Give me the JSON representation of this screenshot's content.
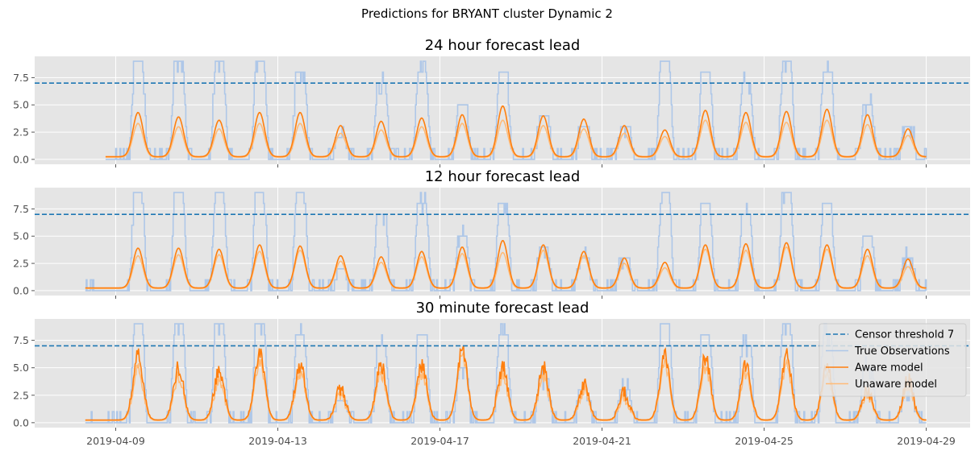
{
  "figure": {
    "suptitle": "Predictions for BRYANT cluster Dynamic 2"
  },
  "colors": {
    "background": "#e5e5e5",
    "grid": "#ffffff",
    "threshold": "#1f77b4",
    "true_obs": "#aec7e8",
    "aware": "#ff7f0e",
    "unaware": "#ffbb78"
  },
  "chart_data": [
    {
      "type": "line",
      "title": "24 hour forecast lead",
      "xlabel": "",
      "ylabel": "",
      "x_ticks": [
        "2019-04-09",
        "2019-04-13",
        "2019-04-17",
        "2019-04-21",
        "2019-04-25",
        "2019-04-29"
      ],
      "x_ticks_labeled": false,
      "y_ticks": [
        0.0,
        2.5,
        5.0,
        7.5
      ],
      "y_tick_labels": [
        "0.0",
        "2.5",
        "5.0",
        "7.5"
      ],
      "xlim": [
        "2019-04-07T00:00",
        "2019-04-30T02:00"
      ],
      "ylim": [
        -0.45,
        9.45
      ],
      "grid": true,
      "threshold": 7,
      "series_start": "2019-04-08T18:00",
      "series_end": "2019-04-29T00:00",
      "peak_days": [
        "2019-04-09",
        "2019-04-10",
        "2019-04-11",
        "2019-04-12",
        "2019-04-13",
        "2019-04-14",
        "2019-04-15",
        "2019-04-16",
        "2019-04-17",
        "2019-04-18",
        "2019-04-19",
        "2019-04-20",
        "2019-04-21",
        "2019-04-22",
        "2019-04-23",
        "2019-04-24",
        "2019-04-25",
        "2019-04-26",
        "2019-04-27",
        "2019-04-28"
      ],
      "observed_daily_peak": [
        9,
        9,
        9,
        9,
        8,
        2,
        7,
        8,
        5,
        8,
        4,
        3,
        3,
        9,
        8,
        7,
        9,
        8,
        5,
        3
      ],
      "aware_daily_peak": [
        4.3,
        3.9,
        3.6,
        4.3,
        4.3,
        3.1,
        3.5,
        3.8,
        4.1,
        4.9,
        4.0,
        3.7,
        3.1,
        2.7,
        4.5,
        4.3,
        4.4,
        4.6,
        4.1,
        2.8
      ],
      "unaware_daily_peak": [
        3.3,
        3.0,
        2.8,
        3.3,
        3.3,
        2.4,
        2.7,
        3.0,
        3.3,
        3.6,
        3.1,
        2.8,
        2.4,
        2.1,
        3.6,
        3.4,
        3.4,
        3.6,
        3.2,
        2.2
      ]
    },
    {
      "type": "line",
      "title": "12 hour forecast lead",
      "xlabel": "",
      "ylabel": "",
      "x_ticks": [
        "2019-04-09",
        "2019-04-13",
        "2019-04-17",
        "2019-04-21",
        "2019-04-25",
        "2019-04-29"
      ],
      "x_ticks_labeled": false,
      "y_ticks": [
        0.0,
        2.5,
        5.0,
        7.5
      ],
      "y_tick_labels": [
        "0.0",
        "2.5",
        "5.0",
        "7.5"
      ],
      "xlim": [
        "2019-04-07T00:00",
        "2019-04-30T02:00"
      ],
      "ylim": [
        -0.45,
        9.45
      ],
      "grid": true,
      "threshold": 7,
      "series_start": "2019-04-08T06:00",
      "series_end": "2019-04-29T00:00",
      "peak_days": [
        "2019-04-09",
        "2019-04-10",
        "2019-04-11",
        "2019-04-12",
        "2019-04-13",
        "2019-04-14",
        "2019-04-15",
        "2019-04-16",
        "2019-04-17",
        "2019-04-18",
        "2019-04-19",
        "2019-04-20",
        "2019-04-21",
        "2019-04-22",
        "2019-04-23",
        "2019-04-24",
        "2019-04-25",
        "2019-04-26",
        "2019-04-27",
        "2019-04-28"
      ],
      "observed_daily_peak": [
        9,
        9,
        9,
        9,
        9,
        2,
        7,
        8,
        5,
        8,
        4,
        3,
        3,
        9,
        8,
        7,
        9,
        8,
        5,
        3
      ],
      "aware_daily_peak": [
        3.9,
        3.9,
        3.8,
        4.2,
        4.1,
        3.2,
        3.1,
        3.6,
        4.0,
        4.6,
        4.2,
        3.6,
        3.0,
        2.6,
        4.2,
        4.3,
        4.4,
        4.2,
        3.8,
        2.9
      ],
      "unaware_daily_peak": [
        3.2,
        3.3,
        3.3,
        3.6,
        3.7,
        2.7,
        2.6,
        3.1,
        3.4,
        3.5,
        3.7,
        3.2,
        2.5,
        2.1,
        3.8,
        3.7,
        4.0,
        3.8,
        3.2,
        2.2
      ]
    },
    {
      "type": "line",
      "title": "30 minute forecast lead",
      "xlabel": "",
      "ylabel": "",
      "x_ticks": [
        "2019-04-09",
        "2019-04-13",
        "2019-04-17",
        "2019-04-21",
        "2019-04-25",
        "2019-04-29"
      ],
      "x_tick_labels": [
        "2019-04-09",
        "2019-04-13",
        "2019-04-17",
        "2019-04-21",
        "2019-04-25",
        "2019-04-29"
      ],
      "x_ticks_labeled": true,
      "y_ticks": [
        0.0,
        2.5,
        5.0,
        7.5
      ],
      "y_tick_labels": [
        "0.0",
        "2.5",
        "5.0",
        "7.5"
      ],
      "xlim": [
        "2019-04-07T00:00",
        "2019-04-30T02:00"
      ],
      "ylim": [
        -0.45,
        9.45
      ],
      "grid": true,
      "threshold": 7,
      "series_start": "2019-04-08T06:00",
      "series_end": "2019-04-29T00:00",
      "peak_days": [
        "2019-04-09",
        "2019-04-10",
        "2019-04-11",
        "2019-04-12",
        "2019-04-13",
        "2019-04-14",
        "2019-04-15",
        "2019-04-16",
        "2019-04-17",
        "2019-04-18",
        "2019-04-19",
        "2019-04-20",
        "2019-04-21",
        "2019-04-22",
        "2019-04-23",
        "2019-04-24",
        "2019-04-25",
        "2019-04-26",
        "2019-04-27",
        "2019-04-28"
      ],
      "observed_daily_peak": [
        9,
        9,
        9,
        9,
        8,
        2,
        7,
        8,
        5,
        8,
        4,
        3,
        3,
        9,
        8,
        7,
        9,
        8,
        5,
        3
      ],
      "aware_daily_peak": [
        6.0,
        5.0,
        4.6,
        6.5,
        5.3,
        3.0,
        5.3,
        5.2,
        6.6,
        5.0,
        5.0,
        3.5,
        2.7,
        6.0,
        5.9,
        5.2,
        6.1,
        5.3,
        3.0,
        4.0
      ],
      "unaware_daily_peak": [
        4.8,
        4.2,
        3.8,
        5.6,
        4.6,
        2.5,
        4.5,
        4.4,
        6.1,
        4.2,
        4.2,
        2.9,
        2.2,
        5.2,
        5.0,
        4.4,
        5.2,
        4.5,
        2.6,
        3.4
      ],
      "legend": {
        "placement": "upper right",
        "entries": [
          {
            "label": "Censor threshold 7",
            "style": "dashed",
            "color_key": "threshold"
          },
          {
            "label": "True Observations",
            "style": "solid",
            "color_key": "true_obs"
          },
          {
            "label": "Aware model",
            "style": "solid",
            "color_key": "aware"
          },
          {
            "label": "Unaware model",
            "style": "solid",
            "color_key": "unaware"
          }
        ]
      }
    }
  ]
}
